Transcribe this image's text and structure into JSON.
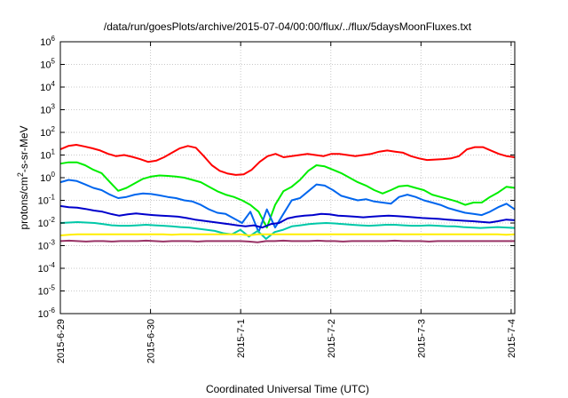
{
  "chart_data": {
    "type": "line",
    "title": "/data/run/goesPlots/archive/2015-07-04/00:00/flux/../flux/5daysMoonFluxes.txt",
    "xlabel": "Coordinated Universal Time (UTC)",
    "ylabel_parts": [
      "protons/cm",
      "2",
      "-s-sr-MeV"
    ],
    "yscale": "log",
    "ylim_exp": [
      -6,
      6
    ],
    "y_tick_exponents": [
      -6,
      -5,
      -4,
      -3,
      -2,
      -1,
      0,
      1,
      2,
      3,
      4,
      5,
      6
    ],
    "y_tick_base": "10",
    "xlim_days": [
      0,
      5.04
    ],
    "x_ticks": [
      {
        "label": "2015-6-29",
        "day": 0
      },
      {
        "label": "2015-6-30",
        "day": 1
      },
      {
        "label": "2015-7-1",
        "day": 2
      },
      {
        "label": "2015-7-2",
        "day": 3
      },
      {
        "label": "2015-7-3",
        "day": 4
      },
      {
        "label": "2015-7-4",
        "day": 5
      }
    ],
    "grid": true,
    "series": [
      {
        "color": "#ff0000",
        "log_values": [
          1.25,
          1.4,
          1.45,
          1.38,
          1.3,
          1.2,
          1.05,
          0.95,
          1.0,
          0.92,
          0.82,
          0.7,
          0.75,
          0.9,
          1.1,
          1.3,
          1.4,
          1.32,
          0.95,
          0.55,
          0.3,
          0.18,
          0.12,
          0.15,
          0.35,
          0.7,
          0.95,
          1.05,
          0.9,
          0.95,
          1.0,
          1.05,
          1.0,
          0.95,
          1.05,
          1.05,
          1.0,
          0.95,
          1.0,
          1.05,
          1.15,
          1.2,
          1.15,
          1.1,
          0.95,
          0.85,
          0.78,
          0.8,
          0.82,
          0.85,
          0.95,
          1.25,
          1.35,
          1.35,
          1.2,
          1.05,
          0.95,
          0.9
        ]
      },
      {
        "color": "#00ee00",
        "log_values": [
          0.62,
          0.68,
          0.68,
          0.55,
          0.35,
          0.2,
          -0.2,
          -0.58,
          -0.45,
          -0.25,
          -0.05,
          0.05,
          0.1,
          0.08,
          0.05,
          0.0,
          -0.1,
          -0.2,
          -0.4,
          -0.6,
          -0.75,
          -0.85,
          -1.0,
          -1.2,
          -1.5,
          -2.2,
          -1.2,
          -0.6,
          -0.4,
          -0.1,
          0.3,
          0.55,
          0.5,
          0.35,
          0.2,
          0.0,
          -0.2,
          -0.35,
          -0.55,
          -0.7,
          -0.55,
          -0.38,
          -0.35,
          -0.45,
          -0.55,
          -0.75,
          -0.85,
          -0.95,
          -1.05,
          -1.2,
          -1.1,
          -1.1,
          -0.85,
          -0.65,
          -0.4,
          -0.45
        ]
      },
      {
        "color": "#0066ee",
        "log_values": [
          -0.2,
          -0.1,
          -0.15,
          -0.3,
          -0.45,
          -0.55,
          -0.75,
          -0.9,
          -0.85,
          -0.75,
          -0.7,
          -0.72,
          -0.78,
          -0.85,
          -0.9,
          -1.0,
          -1.05,
          -1.2,
          -1.4,
          -1.55,
          -1.6,
          -1.8,
          -2.0,
          -1.5,
          -2.4,
          -1.4,
          -2.2,
          -1.6,
          -1.0,
          -0.9,
          -0.6,
          -0.3,
          -0.35,
          -0.55,
          -0.8,
          -0.9,
          -1.0,
          -0.95,
          -1.05,
          -1.1,
          -1.15,
          -0.85,
          -0.75,
          -0.85,
          -1.0,
          -1.1,
          -1.2,
          -1.35,
          -1.45,
          -1.55,
          -1.6,
          -1.65,
          -1.5,
          -1.3,
          -1.15,
          -1.4
        ]
      },
      {
        "color": "#0000cc",
        "log_values": [
          -1.25,
          -1.3,
          -1.32,
          -1.38,
          -1.45,
          -1.5,
          -1.6,
          -1.68,
          -1.62,
          -1.58,
          -1.62,
          -1.65,
          -1.68,
          -1.7,
          -1.72,
          -1.78,
          -1.85,
          -1.9,
          -1.95,
          -2.0,
          -2.05,
          -2.1,
          -2.15,
          -2.1,
          -2.2,
          -2.05,
          -2.0,
          -1.8,
          -1.72,
          -1.68,
          -1.65,
          -1.6,
          -1.62,
          -1.68,
          -1.7,
          -1.72,
          -1.75,
          -1.72,
          -1.7,
          -1.68,
          -1.7,
          -1.72,
          -1.75,
          -1.78,
          -1.8,
          -1.82,
          -1.85,
          -1.88,
          -1.9,
          -1.92,
          -1.95,
          -1.98,
          -1.92,
          -1.85,
          -1.88
        ]
      },
      {
        "color": "#00c8a8",
        "log_values": [
          -2.0,
          -1.98,
          -1.96,
          -1.98,
          -2.0,
          -2.05,
          -2.1,
          -2.12,
          -2.12,
          -2.1,
          -2.08,
          -2.1,
          -2.12,
          -2.15,
          -2.18,
          -2.2,
          -2.25,
          -2.3,
          -2.35,
          -2.45,
          -2.5,
          -2.3,
          -2.6,
          -2.35,
          -2.7,
          -2.4,
          -2.3,
          -2.15,
          -2.1,
          -2.05,
          -2.02,
          -2.0,
          -2.02,
          -2.05,
          -2.08,
          -2.1,
          -2.12,
          -2.1,
          -2.08,
          -2.08,
          -2.1,
          -2.12,
          -2.12,
          -2.1,
          -2.12,
          -2.14,
          -2.15,
          -2.18,
          -2.2,
          -2.22,
          -2.2,
          -2.18,
          -2.2,
          -2.22
        ]
      },
      {
        "color": "#ffee00",
        "log_values": [
          -2.55,
          -2.52,
          -2.5,
          -2.5,
          -2.5,
          -2.5,
          -2.5,
          -2.5,
          -2.5,
          -2.5,
          -2.5,
          -2.5,
          -2.5,
          -2.52,
          -2.5,
          -2.5,
          -2.5,
          -2.5,
          -2.5,
          -2.5,
          -2.5,
          -2.5,
          -2.55,
          -2.5,
          -2.5,
          -2.5,
          -2.5,
          -2.5,
          -2.5,
          -2.5,
          -2.5,
          -2.5,
          -2.5,
          -2.5,
          -2.5,
          -2.5,
          -2.5,
          -2.5,
          -2.5,
          -2.5,
          -2.5,
          -2.5,
          -2.5,
          -2.5,
          -2.5,
          -2.5,
          -2.5,
          -2.5,
          -2.5,
          -2.5,
          -2.5,
          -2.5,
          -2.52,
          -2.5
        ]
      },
      {
        "color": "#993366",
        "log_values": [
          -2.8,
          -2.78,
          -2.8,
          -2.82,
          -2.8,
          -2.8,
          -2.82,
          -2.8,
          -2.8,
          -2.8,
          -2.78,
          -2.8,
          -2.82,
          -2.8,
          -2.8,
          -2.8,
          -2.82,
          -2.8,
          -2.8,
          -2.8,
          -2.8,
          -2.8,
          -2.82,
          -2.85,
          -2.8,
          -2.8,
          -2.78,
          -2.8,
          -2.8,
          -2.8,
          -2.78,
          -2.8,
          -2.8,
          -2.82,
          -2.8,
          -2.8,
          -2.8,
          -2.8,
          -2.8,
          -2.78,
          -2.8,
          -2.8,
          -2.8,
          -2.82,
          -2.8,
          -2.8,
          -2.8,
          -2.8,
          -2.8,
          -2.8,
          -2.8,
          -2.8,
          -2.8,
          -2.8
        ]
      }
    ]
  }
}
